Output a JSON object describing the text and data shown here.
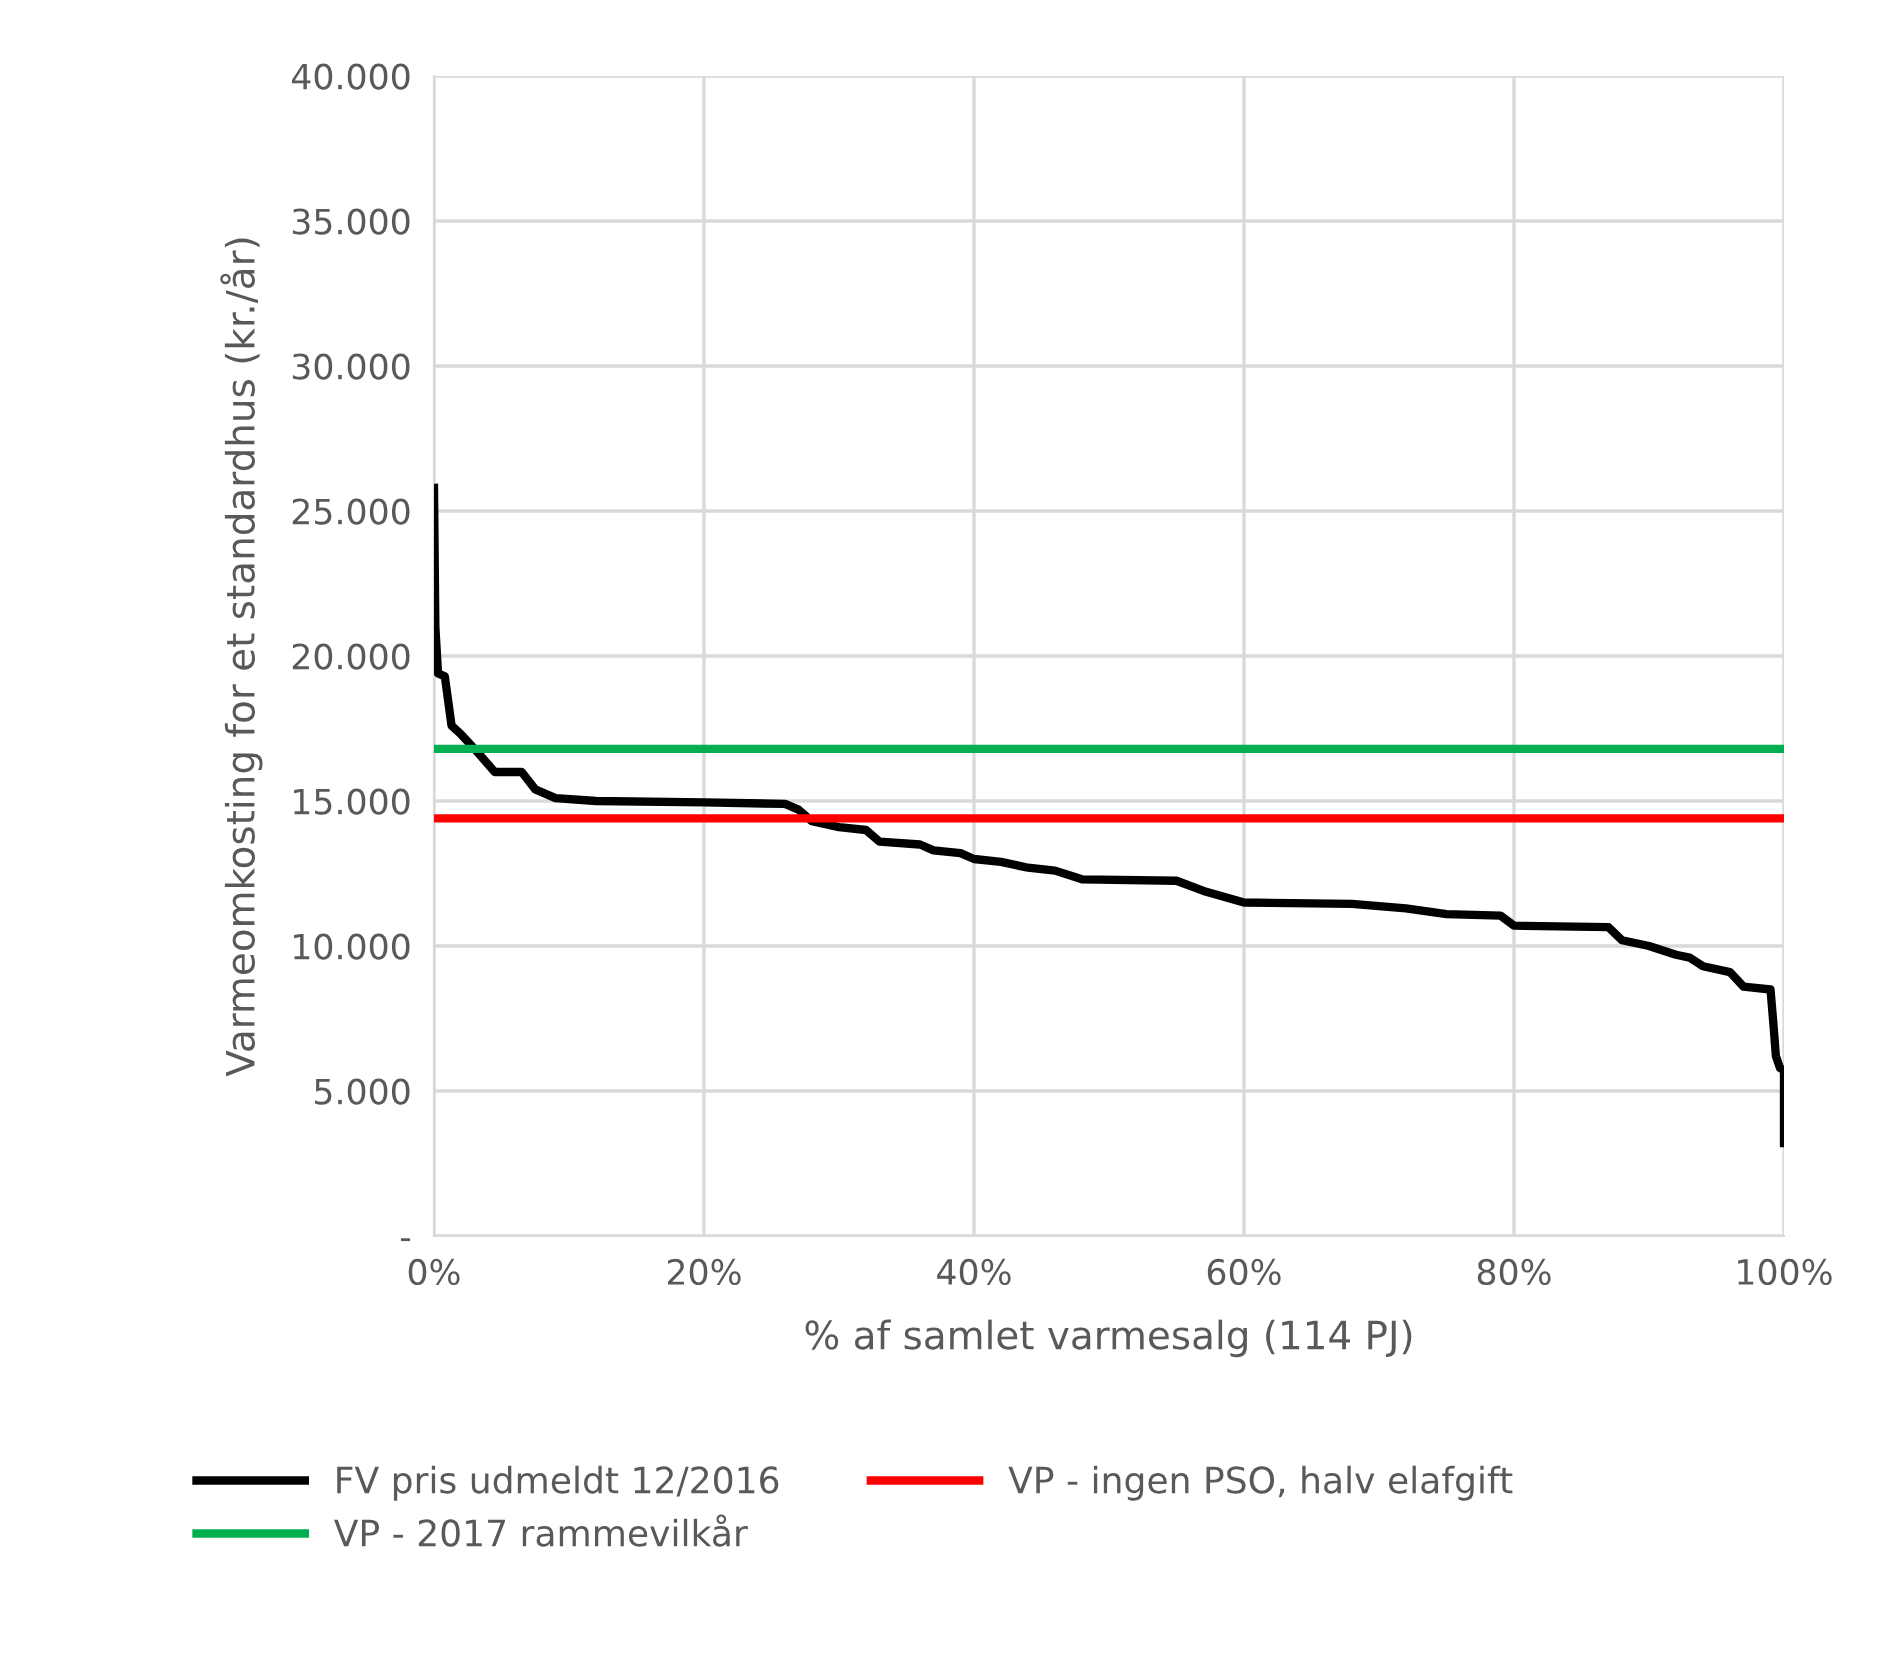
{
  "chart_data": {
    "type": "line",
    "xlabel": "% af samlet varmesalg (114 PJ)",
    "ylabel": "Varmeomkosting for et standardhus (kr./år)",
    "xlim": [
      0,
      100
    ],
    "xticks": [
      {
        "value": 0,
        "label": "0%"
      },
      {
        "value": 20,
        "label": "20%"
      },
      {
        "value": 40,
        "label": "40%"
      },
      {
        "value": 60,
        "label": "60%"
      },
      {
        "value": 80,
        "label": "80%"
      },
      {
        "value": 100,
        "label": "100%"
      }
    ],
    "ylim": [
      0,
      40000
    ],
    "yticks": [
      {
        "value": 0,
        "label": "-"
      },
      {
        "value": 5000,
        "label": "5.000"
      },
      {
        "value": 10000,
        "label": "10.000"
      },
      {
        "value": 15000,
        "label": "15.000"
      },
      {
        "value": 20000,
        "label": "20.000"
      },
      {
        "value": 25000,
        "label": "25.000"
      },
      {
        "value": 30000,
        "label": "30.000"
      },
      {
        "value": 35000,
        "label": "35.000"
      },
      {
        "value": 40000,
        "label": "40.000"
      }
    ],
    "grid": true,
    "legend": "bottom",
    "marker": "none",
    "line_style": "solid",
    "series": [
      {
        "name": "FV pris udmeldt 12/2016",
        "color": "#000000",
        "x": [
          0,
          0.1,
          0.3,
          0.8,
          1.3,
          2,
          3,
          4.5,
          6.5,
          7.5,
          9,
          12,
          20,
          26,
          27,
          28,
          30,
          32,
          33,
          36,
          37,
          39,
          40,
          42,
          44,
          46,
          48,
          55,
          57,
          60,
          68,
          72,
          75,
          79,
          80,
          87,
          88,
          90,
          92,
          93,
          94,
          96,
          97,
          99,
          99.2,
          99.4,
          99.7,
          100,
          100
        ],
        "values": [
          25800,
          21000,
          19400,
          19300,
          17600,
          17300,
          16800,
          16000,
          16000,
          15400,
          15100,
          15000,
          14950,
          14900,
          14700,
          14300,
          14100,
          14000,
          13600,
          13500,
          13300,
          13200,
          13000,
          12900,
          12700,
          12600,
          12300,
          12250,
          11900,
          11500,
          11450,
          11300,
          11100,
          11050,
          10700,
          10650,
          10200,
          10000,
          9700,
          9600,
          9300,
          9100,
          8600,
          8500,
          7400,
          6200,
          5800,
          5700,
          3200
        ]
      },
      {
        "name": "VP - 2017 rammevilkår",
        "color": "#00b050",
        "x": [
          0,
          100
        ],
        "values": [
          16800,
          16800
        ]
      },
      {
        "name": "VP - ingen PSO, halv elafgift",
        "color": "#ff0000",
        "x": [
          0,
          100
        ],
        "values": [
          14400,
          14400
        ]
      }
    ]
  }
}
